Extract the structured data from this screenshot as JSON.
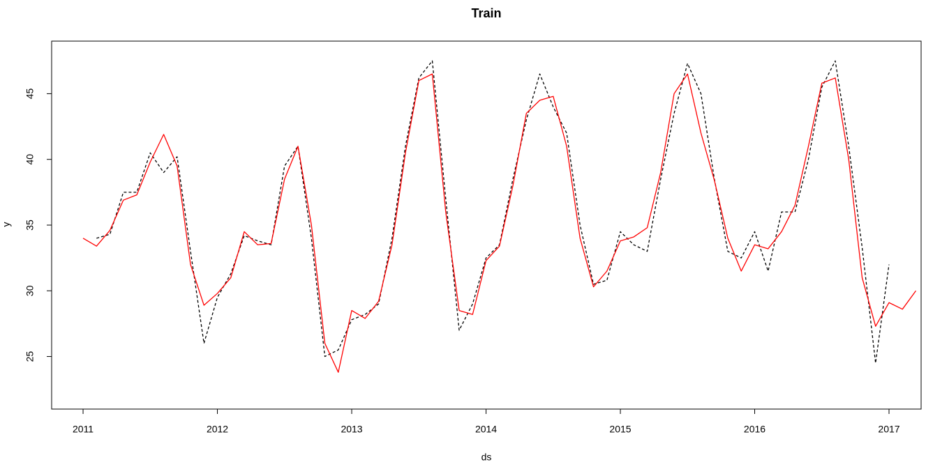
{
  "chart_data": {
    "type": "line",
    "title": "Train",
    "x_label": "ds",
    "y_label": "y",
    "x": [
      2011.0,
      2011.1,
      2011.2,
      2011.3,
      2011.4,
      2011.5,
      2011.6,
      2011.7,
      2011.8,
      2011.9,
      2012.0,
      2012.1,
      2012.2,
      2012.3,
      2012.4,
      2012.5,
      2012.6,
      2012.7,
      2012.8,
      2012.9,
      2013.0,
      2013.1,
      2013.2,
      2013.3,
      2013.4,
      2013.5,
      2013.6,
      2013.7,
      2013.8,
      2013.9,
      2014.0,
      2014.1,
      2014.2,
      2014.3,
      2014.4,
      2014.5,
      2014.6,
      2014.7,
      2014.8,
      2014.9,
      2015.0,
      2015.1,
      2015.2,
      2015.3,
      2015.4,
      2015.5,
      2015.6,
      2015.7,
      2015.8,
      2015.9,
      2016.0,
      2016.1,
      2016.2,
      2016.3,
      2016.4,
      2016.5,
      2016.6,
      2016.7,
      2016.8,
      2016.9,
      2017.0,
      2017.1,
      2017.2
    ],
    "series": [
      {
        "color": "#000000",
        "line_style": "dashed",
        "values": [
          null,
          34.0,
          34.3,
          37.5,
          37.5,
          40.5,
          39.0,
          40.2,
          33.0,
          26.0,
          29.5,
          31.3,
          34.2,
          33.8,
          33.5,
          39.5,
          41.0,
          34.0,
          25.0,
          25.5,
          27.8,
          28.2,
          29.0,
          34.0,
          41.0,
          46.2,
          47.5,
          37.0,
          27.0,
          29.0,
          32.5,
          33.5,
          38.5,
          43.0,
          46.5,
          44.0,
          42.0,
          35.0,
          30.5,
          30.8,
          34.5,
          33.5,
          33.0,
          38.5,
          43.5,
          47.3,
          45.0,
          38.5,
          33.0,
          32.5,
          34.5,
          31.5,
          36.0,
          36.0,
          40.0,
          45.5,
          47.5,
          41.0,
          33.3,
          24.5,
          32.0,
          null,
          null
        ]
      },
      {
        "color": "#ff0000",
        "line_style": "solid",
        "values": [
          34.0,
          33.4,
          34.6,
          36.9,
          37.3,
          39.8,
          41.9,
          39.5,
          32.0,
          28.9,
          29.8,
          31.0,
          34.5,
          33.5,
          33.6,
          38.5,
          41.0,
          35.0,
          26.0,
          23.8,
          28.5,
          27.9,
          29.2,
          33.5,
          40.5,
          46.0,
          46.5,
          36.0,
          28.5,
          28.2,
          32.3,
          33.4,
          38.0,
          43.5,
          44.5,
          44.8,
          41.0,
          34.0,
          30.3,
          31.5,
          33.8,
          34.1,
          34.8,
          39.0,
          45.0,
          46.5,
          42.0,
          38.4,
          34.0,
          31.5,
          33.5,
          33.2,
          34.5,
          36.5,
          41.0,
          45.8,
          46.2,
          40.0,
          31.0,
          27.3,
          29.1,
          28.6,
          30.0
        ]
      }
    ],
    "xlim": [
      2010.766,
      2017.239
    ],
    "ylim": [
      21.0,
      49.0
    ],
    "xticks": [
      2011,
      2012,
      2013,
      2014,
      2015,
      2016,
      2017
    ],
    "yticks": [
      25,
      30,
      35,
      40,
      45
    ],
    "grid": false
  }
}
